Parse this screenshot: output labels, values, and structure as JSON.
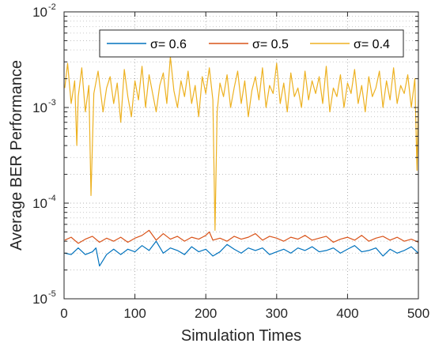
{
  "chart_data": {
    "type": "line",
    "xlabel": "Simulation Times",
    "ylabel": "Average BER Performance",
    "xlim": [
      0,
      500
    ],
    "ylim": [
      1e-05,
      0.01
    ],
    "yscale": "log",
    "grid": true,
    "minor_grid": true,
    "legend_position": "top",
    "legend_orientation": "horizontal",
    "x_ticks": [
      "0",
      "100",
      "200",
      "300",
      "400",
      "500"
    ],
    "y_ticks": [
      {
        "base": "10",
        "exp": "-5"
      },
      {
        "base": "10",
        "exp": "-4"
      },
      {
        "base": "10",
        "exp": "-3"
      },
      {
        "base": "10",
        "exp": "-2"
      }
    ],
    "x_tick_values": [
      0,
      100,
      200,
      300,
      400,
      500
    ],
    "y_tick_values": [
      1e-05,
      0.0001,
      0.001,
      0.01
    ],
    "series": [
      {
        "name": "σ= 0.6",
        "color": "#0072BD",
        "x": [
          1,
          10,
          20,
          30,
          40,
          45,
          50,
          60,
          70,
          80,
          90,
          100,
          110,
          120,
          130,
          140,
          150,
          160,
          170,
          180,
          190,
          200,
          210,
          220,
          230,
          240,
          250,
          260,
          270,
          280,
          290,
          300,
          310,
          320,
          330,
          340,
          350,
          360,
          370,
          380,
          390,
          400,
          410,
          420,
          430,
          440,
          450,
          460,
          470,
          480,
          490,
          500
        ],
        "values": [
          3e-05,
          2.9e-05,
          3.4e-05,
          2.9e-05,
          3.1e-05,
          3.4e-05,
          2.2e-05,
          2.9e-05,
          3.3e-05,
          2.9e-05,
          3.3e-05,
          3.1e-05,
          3.6e-05,
          3.2e-05,
          4e-05,
          3e-05,
          3.4e-05,
          3.2e-05,
          2.9e-05,
          3.5e-05,
          3.1e-05,
          3.3e-05,
          2.8e-05,
          3.1e-05,
          3.7e-05,
          3.3e-05,
          3e-05,
          3.4e-05,
          3.2e-05,
          3.4e-05,
          2.9e-05,
          3.1e-05,
          3.3e-05,
          3e-05,
          3.4e-05,
          3.2e-05,
          3.5e-05,
          3.1e-05,
          3.2e-05,
          3.4e-05,
          3e-05,
          3.3e-05,
          3.6e-05,
          3.1e-05,
          3.2e-05,
          3.4e-05,
          2.8e-05,
          3.3e-05,
          3e-05,
          3.2e-05,
          3.5e-05,
          3e-05
        ]
      },
      {
        "name": "σ= 0.5",
        "color": "#D95319",
        "x": [
          1,
          10,
          20,
          30,
          40,
          50,
          60,
          70,
          80,
          90,
          100,
          110,
          120,
          130,
          140,
          150,
          160,
          170,
          180,
          190,
          200,
          205,
          210,
          220,
          230,
          240,
          250,
          260,
          270,
          280,
          290,
          300,
          310,
          320,
          330,
          340,
          350,
          360,
          370,
          380,
          390,
          400,
          410,
          420,
          430,
          440,
          450,
          460,
          470,
          480,
          490,
          500
        ],
        "values": [
          4.1e-05,
          4.4e-05,
          3.8e-05,
          4.2e-05,
          4.5e-05,
          3.9e-05,
          4.3e-05,
          4e-05,
          4.4e-05,
          3.9e-05,
          4.3e-05,
          4.6e-05,
          5.2e-05,
          4.1e-05,
          4.8e-05,
          4.2e-05,
          4.5e-05,
          4e-05,
          4.4e-05,
          4.2e-05,
          4.6e-05,
          5e-05,
          4.1e-05,
          4.3e-05,
          4e-05,
          4.5e-05,
          4.2e-05,
          4.4e-05,
          4.8e-05,
          4.1e-05,
          4.5e-05,
          4.3e-05,
          4e-05,
          4.4e-05,
          4.2e-05,
          4.6e-05,
          4.1e-05,
          4.3e-05,
          4.5e-05,
          3.9e-05,
          4.2e-05,
          4.4e-05,
          4.1e-05,
          4.6e-05,
          4e-05,
          4.3e-05,
          4.5e-05,
          4.1e-05,
          4.4e-05,
          4e-05,
          4.2e-05,
          3.9e-05
        ]
      },
      {
        "name": "σ= 0.4",
        "color": "#EDB120",
        "x": [
          1,
          5,
          10,
          15,
          18,
          20,
          25,
          30,
          35,
          38,
          42,
          48,
          55,
          60,
          65,
          70,
          75,
          80,
          85,
          90,
          95,
          100,
          105,
          110,
          115,
          120,
          125,
          130,
          135,
          140,
          145,
          150,
          155,
          160,
          165,
          170,
          175,
          180,
          185,
          190,
          195,
          200,
          205,
          210,
          213,
          216,
          220,
          225,
          230,
          235,
          240,
          245,
          250,
          255,
          260,
          265,
          270,
          275,
          280,
          285,
          290,
          295,
          300,
          305,
          310,
          315,
          320,
          325,
          330,
          335,
          340,
          345,
          350,
          355,
          360,
          365,
          370,
          375,
          380,
          385,
          390,
          395,
          400,
          405,
          410,
          415,
          420,
          425,
          430,
          435,
          440,
          445,
          450,
          455,
          460,
          465,
          470,
          475,
          480,
          485,
          490,
          495,
          498,
          500
        ],
        "values": [
          0.0016,
          0.0029,
          0.0011,
          0.0019,
          0.0004,
          0.0013,
          0.0026,
          0.0009,
          0.0017,
          0.00012,
          0.0014,
          0.0024,
          0.0009,
          0.0016,
          0.0021,
          0.0011,
          0.0018,
          0.0007,
          0.0025,
          0.0013,
          0.0008,
          0.0019,
          0.0012,
          0.0027,
          0.001,
          0.0022,
          0.0014,
          0.0009,
          0.0017,
          0.0023,
          0.0011,
          0.0034,
          0.0015,
          0.001,
          0.0019,
          0.0013,
          0.0024,
          0.0011,
          0.0017,
          0.0008,
          0.0021,
          0.0014,
          0.0026,
          0.0012,
          5.2e-05,
          0.0009,
          0.0018,
          0.0013,
          0.0022,
          0.001,
          0.0016,
          0.0024,
          0.0011,
          0.0019,
          0.0008,
          0.0015,
          0.0021,
          0.0012,
          0.0026,
          0.001,
          0.0017,
          0.0014,
          0.0029,
          0.0011,
          0.0018,
          0.0009,
          0.0023,
          0.0013,
          0.0016,
          0.001,
          0.0024,
          0.0012,
          0.0019,
          0.0014,
          0.0021,
          0.0011,
          0.0027,
          0.0009,
          0.0016,
          0.0013,
          0.0022,
          0.001,
          0.0018,
          0.0014,
          0.0025,
          0.0011,
          0.0017,
          0.0009,
          0.0021,
          0.0013,
          0.0016,
          0.0024,
          0.001,
          0.0019,
          0.0012,
          0.0026,
          0.0011,
          0.0017,
          0.0014,
          0.0022,
          0.001,
          0.002,
          0.00022,
          0.0012
        ]
      }
    ]
  }
}
